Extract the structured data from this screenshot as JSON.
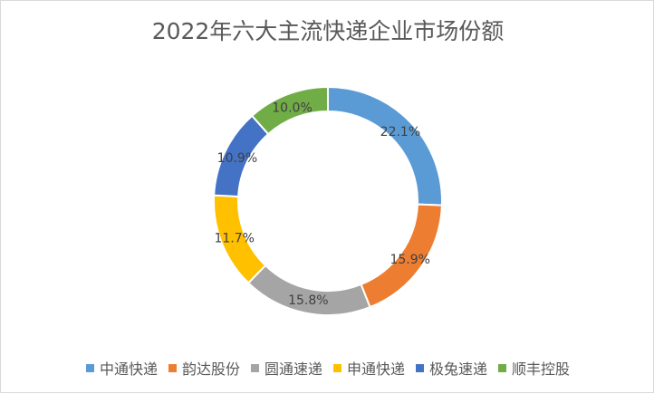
{
  "chart_data": {
    "type": "pie",
    "donut": true,
    "title": "2022年六大主流快递企业市场份额",
    "categories": [
      "中通快递",
      "韵达股份",
      "圆通速递",
      "申通快递",
      "极兔速递",
      "顺丰控股"
    ],
    "values": [
      22.1,
      15.9,
      15.8,
      11.7,
      10.9,
      10.0
    ],
    "labels": [
      "22.1%",
      "15.9%",
      "15.8%",
      "11.7%",
      "10.9%",
      "10.0%"
    ],
    "colors": [
      "#5B9BD5",
      "#ED7D31",
      "#A5A5A5",
      "#FFC000",
      "#4472C4",
      "#70AD47"
    ],
    "legend_position": "bottom"
  }
}
